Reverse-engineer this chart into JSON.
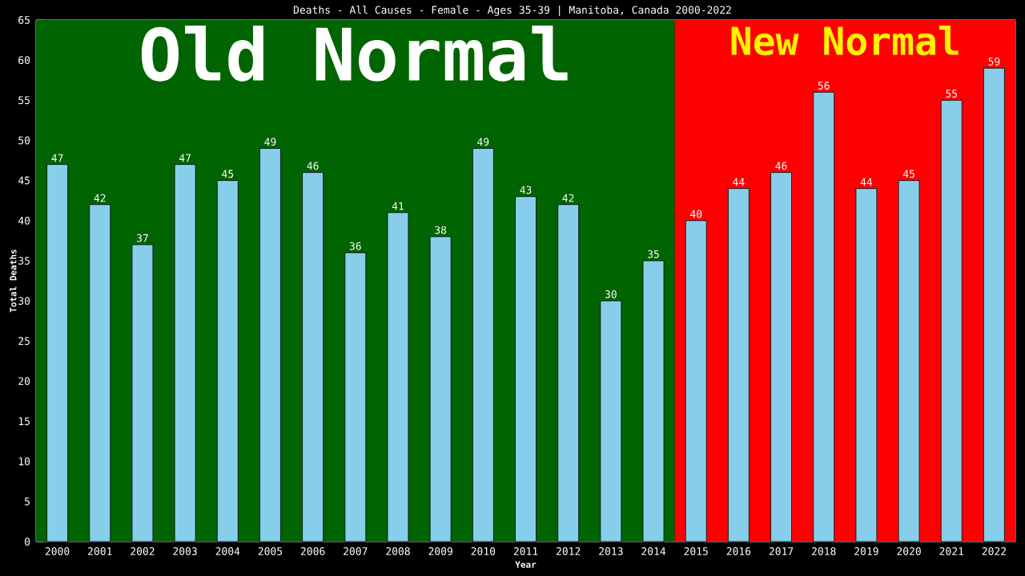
{
  "chart_data": {
    "type": "bar",
    "title": "Deaths - All Causes - Female - Ages 35-39 | Manitoba, Canada 2000-2022",
    "xlabel": "Year",
    "ylabel": "Total Deaths",
    "categories": [
      "2000",
      "2001",
      "2002",
      "2003",
      "2004",
      "2005",
      "2006",
      "2007",
      "2008",
      "2009",
      "2010",
      "2011",
      "2012",
      "2013",
      "2014",
      "2015",
      "2016",
      "2017",
      "2018",
      "2019",
      "2020",
      "2021",
      "2022"
    ],
    "values": [
      47,
      42,
      37,
      47,
      45,
      49,
      46,
      36,
      41,
      38,
      49,
      43,
      42,
      30,
      35,
      40,
      44,
      46,
      56,
      44,
      45,
      55,
      59
    ],
    "color": "#87ceeb",
    "data_labels": true,
    "ylim": [
      0,
      65
    ],
    "yticks": [
      0,
      5,
      10,
      15,
      20,
      25,
      30,
      35,
      40,
      45,
      50,
      55,
      60,
      65
    ],
    "grid": false,
    "bands": [
      {
        "axis": "x",
        "from": "2000",
        "to": "2014",
        "label": "Old Normal",
        "color": "#006400"
      },
      {
        "axis": "x",
        "from": "2015",
        "to": "2022",
        "label": "New Normal",
        "color": "#ff0000"
      }
    ]
  }
}
